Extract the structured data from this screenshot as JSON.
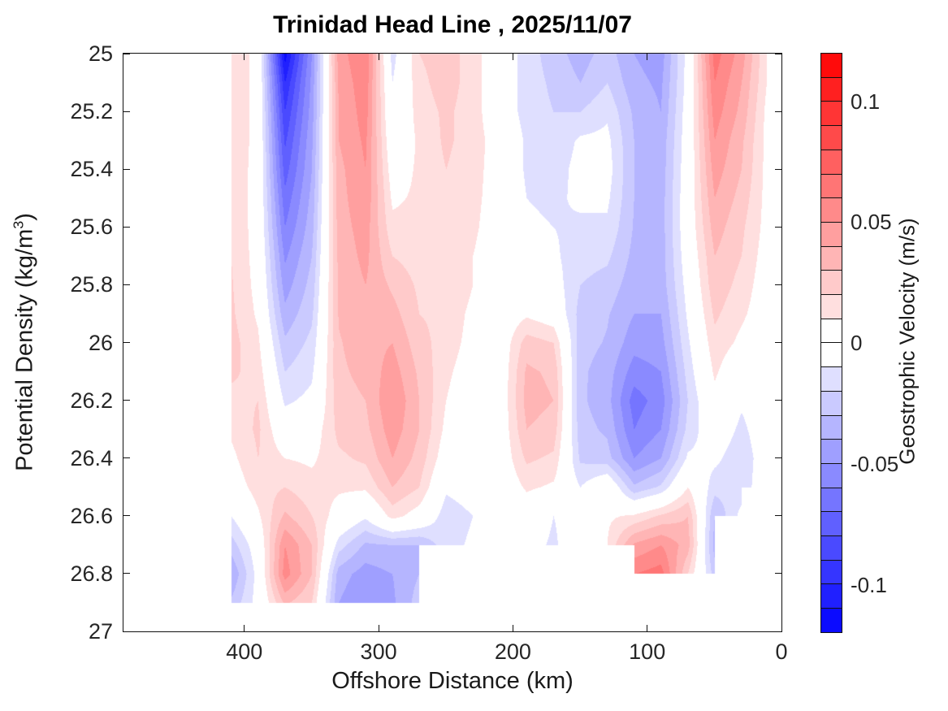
{
  "chart_data": {
    "type": "filled_contour",
    "title": "Trinidad Head Line , 2025/11/07",
    "x_axis": {
      "label": "Offshore Distance (km)",
      "min": 0,
      "max": 490,
      "reversed": true,
      "ticks": [
        {
          "value": 400,
          "label": "400"
        },
        {
          "value": 300,
          "label": "300"
        },
        {
          "value": 200,
          "label": "200"
        },
        {
          "value": 100,
          "label": "100"
        },
        {
          "value": 0,
          "label": "0"
        }
      ]
    },
    "y_axis": {
      "label": "Potential Density (kg/m^3)",
      "label_prefix": "Potential Density (kg/m",
      "label_sup": "3",
      "label_suffix": ")",
      "min": 25,
      "max": 27,
      "increases_downward": true,
      "ticks": [
        {
          "value": 25,
          "label": "25"
        },
        {
          "value": 25.2,
          "label": "25.2"
        },
        {
          "value": 25.4,
          "label": "25.4"
        },
        {
          "value": 25.6,
          "label": "25.6"
        },
        {
          "value": 25.8,
          "label": "25.8"
        },
        {
          "value": 26,
          "label": "26"
        },
        {
          "value": 26.2,
          "label": "26.2"
        },
        {
          "value": 26.4,
          "label": "26.4"
        },
        {
          "value": 26.6,
          "label": "26.6"
        },
        {
          "value": 26.8,
          "label": "26.8"
        },
        {
          "value": 27,
          "label": "27"
        }
      ]
    },
    "colorbar": {
      "label": "Geostrophic Velocity (m/s)",
      "min": -0.12,
      "max": 0.12,
      "band_step": 0.01,
      "n_segments": 24,
      "positive_color": "#FF0000",
      "zero_color": "#FFFFFF",
      "negative_color": "#0000FF",
      "ticks": [
        {
          "value": 0.1,
          "label": "0.1"
        },
        {
          "value": 0.05,
          "label": "0.05"
        },
        {
          "value": 0,
          "label": "0"
        },
        {
          "value": -0.05,
          "label": "-0.05"
        },
        {
          "value": -0.1,
          "label": "-0.1"
        }
      ]
    },
    "grid": {
      "comment": "Estimated geostrophic velocity (m/s) on density (rows) x offshore-distance (cols) grid; null = no data (masked white)",
      "x_km": [
        410,
        390,
        370,
        350,
        330,
        310,
        290,
        270,
        250,
        230,
        210,
        190,
        170,
        150,
        130,
        110,
        90,
        70,
        50,
        30,
        10
      ],
      "density": [
        25.0,
        25.1,
        25.2,
        25.3,
        25.4,
        25.5,
        25.6,
        25.7,
        25.8,
        25.9,
        26.0,
        26.1,
        26.2,
        26.3,
        26.4,
        26.5,
        26.6,
        26.7,
        26.8,
        26.9
      ],
      "velocity_ms": [
        [
          0.02,
          0.005,
          -0.115,
          -0.05,
          0.045,
          0.06,
          -0.015,
          0.02,
          0.025,
          0.015,
          0.0,
          -0.015,
          -0.025,
          -0.035,
          -0.025,
          -0.04,
          -0.045,
          -0.005,
          0.065,
          0.045,
          0.008
        ],
        [
          0.02,
          0.005,
          -0.1,
          -0.047,
          0.042,
          0.057,
          -0.01,
          0.017,
          0.025,
          0.015,
          0.0,
          -0.015,
          -0.022,
          -0.03,
          -0.02,
          -0.037,
          -0.042,
          -0.005,
          0.06,
          0.04,
          0.008
        ],
        [
          0.02,
          0.005,
          -0.09,
          -0.045,
          0.04,
          0.055,
          -0.007,
          0.015,
          0.022,
          0.015,
          0.0,
          -0.015,
          -0.02,
          -0.02,
          -0.012,
          -0.032,
          -0.04,
          -0.003,
          0.055,
          0.037,
          0.005
        ],
        [
          0.02,
          0.005,
          -0.082,
          -0.042,
          0.04,
          0.052,
          -0.002,
          0.012,
          0.022,
          0.015,
          0.004,
          -0.012,
          -0.018,
          -0.008,
          -0.007,
          -0.03,
          -0.037,
          -0.002,
          0.05,
          0.032,
          0.005
        ],
        [
          0.02,
          0.004,
          -0.075,
          -0.04,
          0.037,
          0.05,
          0.003,
          0.012,
          0.02,
          0.014,
          0.004,
          -0.012,
          -0.015,
          -0.006,
          -0.005,
          -0.03,
          -0.036,
          -0.001,
          0.045,
          0.03,
          0.005
        ],
        [
          0.02,
          0.004,
          -0.067,
          -0.037,
          0.036,
          0.048,
          0.008,
          0.012,
          0.02,
          0.013,
          0.004,
          -0.01,
          -0.012,
          -0.008,
          -0.008,
          -0.03,
          -0.035,
          0.0,
          0.04,
          0.026,
          0.005
        ],
        [
          0.02,
          0.004,
          -0.06,
          -0.034,
          0.035,
          0.045,
          0.013,
          0.013,
          0.02,
          0.012,
          0.003,
          -0.008,
          -0.01,
          -0.012,
          -0.012,
          -0.031,
          -0.035,
          0.0,
          0.035,
          0.022,
          0.005
        ],
        [
          0.02,
          0.005,
          -0.052,
          -0.03,
          0.033,
          0.043,
          0.02,
          0.015,
          0.02,
          0.01,
          0.002,
          -0.005,
          -0.008,
          -0.016,
          -0.018,
          -0.033,
          -0.035,
          -0.002,
          0.03,
          0.02,
          0.003
        ],
        [
          0.021,
          0.006,
          -0.045,
          -0.026,
          0.032,
          0.04,
          0.028,
          0.018,
          0.02,
          0.01,
          0.001,
          0.0,
          -0.004,
          -0.02,
          -0.024,
          -0.036,
          -0.036,
          -0.005,
          0.027,
          0.016,
          0.002
        ],
        [
          0.022,
          0.008,
          -0.037,
          -0.022,
          0.031,
          0.038,
          0.034,
          0.02,
          0.017,
          0.007,
          0.0,
          0.008,
          0.002,
          -0.024,
          -0.029,
          -0.04,
          -0.04,
          -0.008,
          0.022,
          0.012,
          0.002
        ],
        [
          0.024,
          0.012,
          -0.028,
          -0.017,
          0.029,
          0.036,
          0.04,
          0.024,
          0.015,
          0.006,
          0.0,
          0.025,
          0.02,
          -0.026,
          -0.031,
          -0.046,
          -0.044,
          -0.012,
          0.017,
          0.007,
          0.001
        ],
        [
          0.022,
          0.016,
          -0.02,
          -0.012,
          0.028,
          0.033,
          0.045,
          0.028,
          0.012,
          0.004,
          0.0,
          0.032,
          0.028,
          -0.028,
          -0.035,
          -0.055,
          -0.05,
          -0.016,
          0.012,
          -0.003,
          0.0
        ],
        [
          0.017,
          0.02,
          -0.012,
          -0.007,
          0.026,
          0.03,
          0.05,
          0.03,
          0.01,
          0.002,
          0.0,
          0.034,
          0.03,
          -0.028,
          -0.036,
          -0.065,
          -0.055,
          -0.02,
          0.006,
          -0.008,
          0.0
        ],
        [
          0.012,
          0.022,
          -0.002,
          0.002,
          0.023,
          0.027,
          0.046,
          0.03,
          0.007,
          0.001,
          0.0,
          0.03,
          0.026,
          -0.026,
          -0.032,
          -0.06,
          -0.05,
          -0.017,
          0.0,
          -0.013,
          0.0
        ],
        [
          0.007,
          0.02,
          0.01,
          0.008,
          0.018,
          0.022,
          0.04,
          0.026,
          0.002,
          0.0,
          0.0,
          0.022,
          0.018,
          -0.022,
          -0.026,
          -0.05,
          -0.04,
          -0.008,
          -0.007,
          -0.018,
          0.0
        ],
        [
          0.002,
          0.015,
          0.02,
          0.014,
          0.012,
          0.012,
          0.03,
          0.02,
          -0.008,
          -0.004,
          -0.002,
          0.012,
          0.008,
          -0.01,
          0.004,
          -0.028,
          -0.018,
          0.01,
          -0.016,
          -0.016,
          0.0
        ],
        [
          -0.01,
          0.008,
          0.032,
          0.02,
          0.004,
          -0.008,
          0.014,
          0.004,
          -0.016,
          -0.01,
          -0.006,
          0.0,
          -0.01,
          -0.004,
          0.008,
          0.012,
          0.022,
          0.03,
          -0.03,
          -0.006,
          null
        ],
        [
          -0.025,
          -0.002,
          0.05,
          0.03,
          -0.015,
          -0.032,
          -0.03,
          -0.03,
          -0.014,
          -0.008,
          -0.004,
          -0.005,
          -0.012,
          0.0,
          0.01,
          0.042,
          0.05,
          0.035,
          -0.035,
          null,
          null
        ],
        [
          -0.04,
          -0.005,
          0.055,
          0.03,
          -0.035,
          -0.045,
          -0.04,
          -0.03,
          null,
          null,
          null,
          null,
          null,
          null,
          null,
          0.06,
          0.065,
          0.02,
          -0.025,
          null,
          null
        ],
        [
          -0.028,
          -0.005,
          0.032,
          0.02,
          -0.04,
          -0.05,
          -0.042,
          -0.025,
          null,
          null,
          null,
          null,
          null,
          null,
          null,
          null,
          null,
          null,
          null,
          null,
          null
        ]
      ]
    }
  }
}
